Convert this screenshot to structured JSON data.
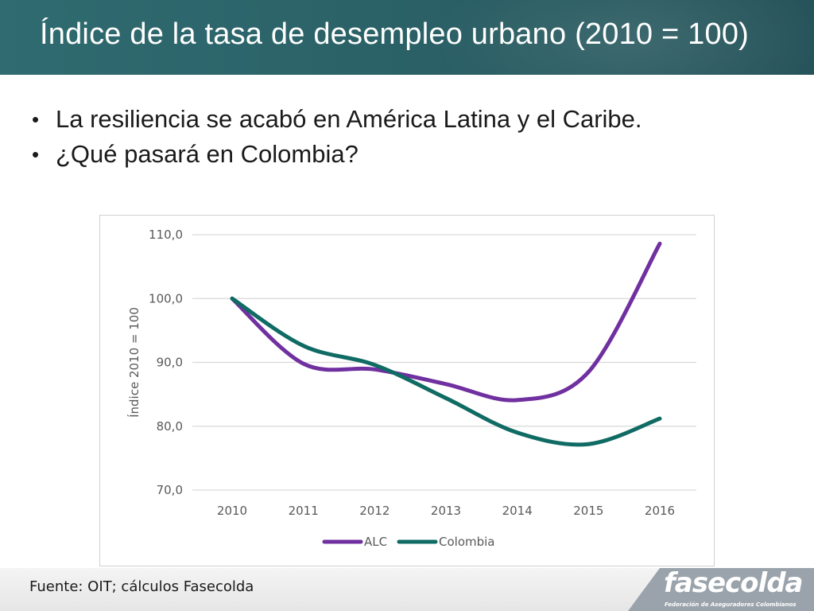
{
  "slide": {
    "title": "Índice de la tasa de desempleo urbano (2010 = 100)",
    "bullets": [
      "La resiliencia se acabó en América Latina y el Caribe.",
      "¿Qué pasará en Colombia?"
    ],
    "bullet_glyph": "•",
    "source": "Fuente: OIT; cálculos Fasecolda",
    "logo": {
      "name": "fasecolda",
      "tagline": "Federación de Aseguradores Colombianos"
    }
  },
  "colors": {
    "title_bar": "#2b6268",
    "alc": "#7030a0",
    "colombia": "#0f6b63",
    "logo_bg": "#9aa3ab"
  },
  "chart_data": {
    "type": "line",
    "title": "",
    "xlabel": "",
    "ylabel": "Índice 2010 = 100",
    "x": [
      "2010",
      "2011",
      "2012",
      "2013",
      "2014",
      "2015",
      "2016"
    ],
    "ylim": [
      70,
      110
    ],
    "yticks": [
      70,
      80,
      90,
      100,
      110
    ],
    "ytick_labels": [
      "70,0",
      "80,0",
      "90,0",
      "100,0",
      "110,0"
    ],
    "grid": true,
    "legend_position": "bottom",
    "series": [
      {
        "name": "ALC",
        "color": "#7030a0",
        "values": [
          100.0,
          89.8,
          88.9,
          86.6,
          84.1,
          88.5,
          108.6
        ]
      },
      {
        "name": "Colombia",
        "color": "#0f6b63",
        "values": [
          100.0,
          92.6,
          89.6,
          84.4,
          79.0,
          77.2,
          81.2
        ]
      }
    ]
  }
}
